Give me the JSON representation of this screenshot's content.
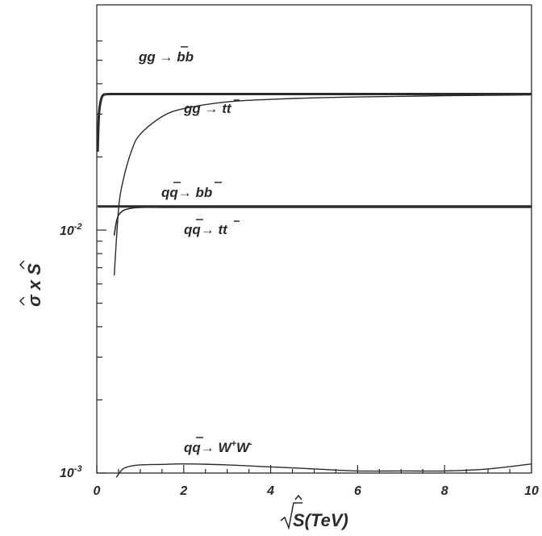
{
  "chart_data": {
    "type": "line",
    "xlabel": "√Ŝ(TeV)",
    "ylabel": "σ̂ x Ŝ",
    "xlim": [
      0,
      10
    ],
    "ylim": [
      0.001,
      0.065
    ],
    "yscale": "log",
    "grid": false,
    "x_ticks": [
      0,
      2,
      4,
      6,
      8,
      10
    ],
    "x_tick_labels": [
      "0",
      "2",
      "4",
      "6",
      "8",
      "10"
    ],
    "y_labeled_ticks": [
      {
        "value": 0.01,
        "label": "10-2"
      },
      {
        "value": 0.001,
        "label": "10-3"
      }
    ],
    "series": [
      {
        "name": "gg → bb̄",
        "x": [
          0.02,
          0.05,
          0.1,
          0.15,
          0.2,
          0.3,
          0.5,
          1,
          2,
          4,
          6,
          8,
          10
        ],
        "y": [
          0.021,
          0.03,
          0.0345,
          0.036,
          0.0362,
          0.0363,
          0.0363,
          0.0363,
          0.0363,
          0.0363,
          0.0363,
          0.0363,
          0.0363
        ]
      },
      {
        "name": "gg → tt̄",
        "x": [
          0.4,
          0.5,
          0.6,
          0.8,
          1.0,
          1.5,
          2,
          3,
          4,
          5,
          6,
          8,
          10
        ],
        "y": [
          0.0065,
          0.0121,
          0.0158,
          0.0212,
          0.0248,
          0.0293,
          0.0316,
          0.0337,
          0.0345,
          0.035,
          0.0353,
          0.0357,
          0.036
        ]
      },
      {
        "name": "qq̄ → bb̄",
        "x": [
          0.02,
          0.1,
          0.5,
          1,
          2,
          4,
          6,
          8,
          10
        ],
        "y": [
          0.0125,
          0.0125,
          0.0125,
          0.0125,
          0.0125,
          0.0125,
          0.0125,
          0.0125,
          0.0125
        ]
      },
      {
        "name": "qq̄ → tt̄",
        "x": [
          0.4,
          0.45,
          0.5,
          0.6,
          0.7,
          0.8,
          1.0,
          1.5,
          2,
          4,
          6,
          8,
          10
        ],
        "y": [
          0.0095,
          0.0108,
          0.0115,
          0.012,
          0.0122,
          0.0123,
          0.0124,
          0.0124,
          0.0124,
          0.0124,
          0.0124,
          0.0124,
          0.0124
        ]
      },
      {
        "name": "qq̄ → W⁺W⁻",
        "x": [
          0.45,
          0.6,
          0.8,
          1.0,
          1.5,
          2,
          3,
          4,
          5,
          6,
          7,
          8,
          9,
          10
        ],
        "y": [
          0.00096,
          0.00104,
          0.00107,
          0.00108,
          0.001085,
          0.00109,
          0.00108,
          0.00106,
          0.00104,
          0.00102,
          0.00102,
          0.00102,
          0.00104,
          0.00109
        ]
      }
    ]
  }
}
